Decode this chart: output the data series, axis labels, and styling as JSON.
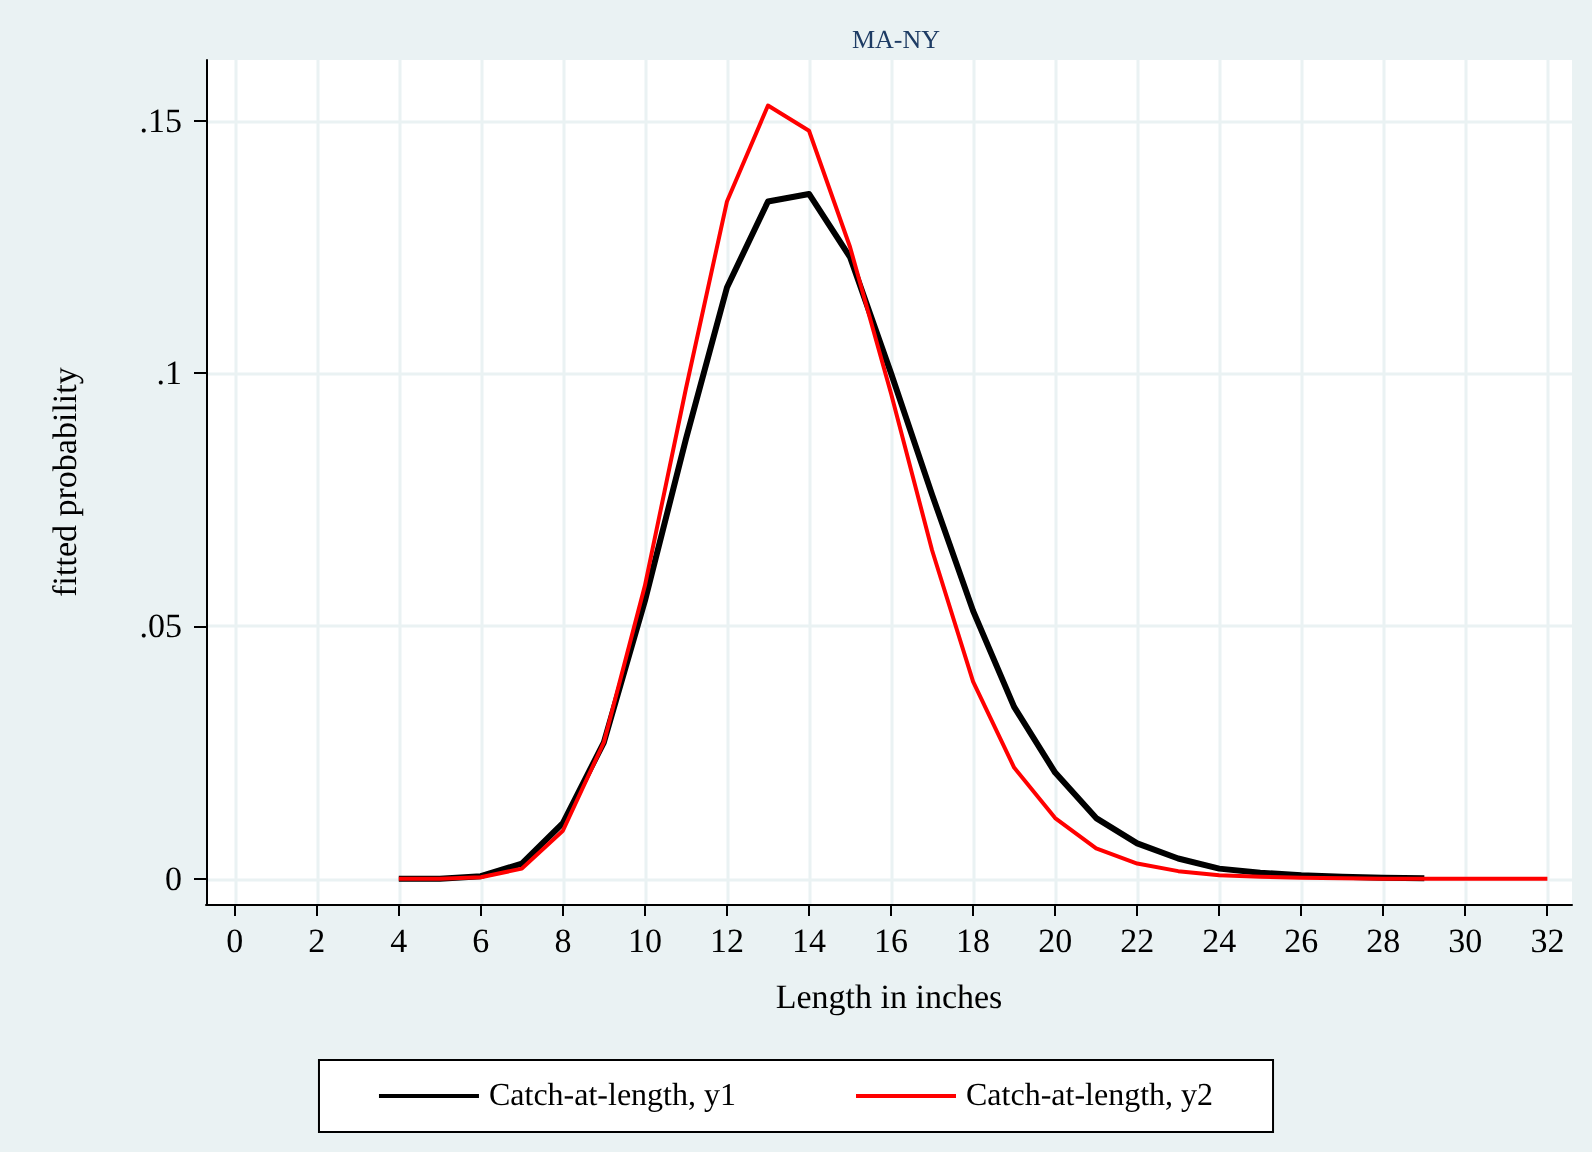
{
  "chart_data": {
    "type": "line",
    "title": "MA-NY",
    "xlabel": "Length in inches",
    "ylabel": "fitted probability",
    "x": [
      4,
      5,
      6,
      7,
      8,
      9,
      10,
      11,
      12,
      13,
      14,
      15,
      16,
      17,
      18,
      19,
      20,
      21,
      22,
      23,
      24,
      25,
      26,
      27,
      28,
      29,
      30,
      31,
      32
    ],
    "series": [
      {
        "name": "Catch-at-length, y1",
        "color": "#000000",
        "values": [
          0,
          0,
          0.0005,
          0.003,
          0.011,
          0.027,
          0.055,
          0.087,
          0.117,
          0.134,
          0.1355,
          0.123,
          0.1,
          0.076,
          0.053,
          0.034,
          0.021,
          0.012,
          0.007,
          0.004,
          0.002,
          0.0012,
          0.0007,
          0.0004,
          0.0002,
          0.0001,
          null,
          null,
          null
        ]
      },
      {
        "name": "Catch-at-length, y2",
        "color": "#ff0000",
        "values": [
          0,
          0,
          0.0003,
          0.002,
          0.0095,
          0.027,
          0.058,
          0.097,
          0.134,
          0.153,
          0.148,
          0.125,
          0.096,
          0.065,
          0.039,
          0.022,
          0.012,
          0.006,
          0.003,
          0.0015,
          0.0007,
          0.0004,
          0.0002,
          0.0001,
          0,
          0,
          0,
          0,
          0
        ]
      }
    ],
    "xlim": [
      -0.7,
      32.6
    ],
    "xticks": [
      0,
      2,
      4,
      6,
      8,
      10,
      12,
      14,
      16,
      18,
      20,
      22,
      24,
      26,
      28,
      30,
      32
    ],
    "ylim": [
      -0.005,
      0.162
    ],
    "yticks": [
      {
        "value": 0,
        "label": "0"
      },
      {
        "value": 0.05,
        "label": ".05"
      },
      {
        "value": 0.1,
        "label": ".1"
      },
      {
        "value": 0.15,
        "label": ".15"
      }
    ],
    "grid": true,
    "legend": "bottom",
    "marker": "none",
    "line_style": "solid"
  }
}
